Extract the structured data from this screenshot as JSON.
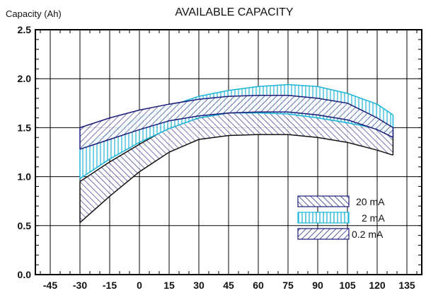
{
  "chart_data": {
    "type": "area",
    "title": "AVAILABLE CAPACITY",
    "ylabel": "Capacity (Ah)",
    "xlabel": "",
    "xlim": [
      -52.5,
      142.5
    ],
    "ylim": [
      0,
      2.5
    ],
    "x_ticks": [
      "-45",
      "-30",
      "-15",
      "0",
      "15",
      "30",
      "45",
      "60",
      "75",
      "90",
      "105",
      "120",
      "135"
    ],
    "y_ticks": [
      "0.0",
      "0.5",
      "1.0",
      "1.5",
      "2.0",
      "2.5"
    ],
    "grid": true,
    "legend_position": "bottom-right",
    "colors": {
      "dark_band": "#1a1a7a",
      "cyan_band": "#1ab4d8",
      "dark_edge": "#111111"
    },
    "series": [
      {
        "name": "20 mA",
        "hatch": "dark-backslash",
        "x": [
          -30,
          -15,
          0,
          15,
          30,
          45,
          60,
          75,
          90,
          105,
          120,
          128
        ],
        "upper": [
          0.95,
          1.15,
          1.33,
          1.5,
          1.6,
          1.65,
          1.67,
          1.67,
          1.62,
          1.57,
          1.5,
          1.45
        ],
        "lower": [
          0.53,
          0.8,
          1.05,
          1.25,
          1.38,
          1.42,
          1.43,
          1.43,
          1.4,
          1.35,
          1.27,
          1.22
        ]
      },
      {
        "name": "2 mA",
        "hatch": "cyan-vertical",
        "x": [
          -30,
          -15,
          0,
          15,
          30,
          45,
          60,
          75,
          90,
          105,
          120,
          128
        ],
        "upper": [
          1.28,
          1.45,
          1.6,
          1.72,
          1.82,
          1.88,
          1.92,
          1.94,
          1.92,
          1.85,
          1.74,
          1.63
        ],
        "lower": [
          0.98,
          1.18,
          1.35,
          1.49,
          1.6,
          1.65,
          1.65,
          1.64,
          1.6,
          1.55,
          1.49,
          1.44
        ]
      },
      {
        "name": "0.2 mA",
        "hatch": "dark-slash",
        "x": [
          -30,
          -15,
          0,
          15,
          30,
          45,
          60,
          75,
          90,
          105,
          120,
          128
        ],
        "upper": [
          1.5,
          1.6,
          1.68,
          1.74,
          1.79,
          1.82,
          1.83,
          1.83,
          1.8,
          1.75,
          1.6,
          1.5
        ],
        "lower": [
          1.28,
          1.38,
          1.48,
          1.57,
          1.62,
          1.65,
          1.66,
          1.66,
          1.63,
          1.58,
          1.48,
          1.4
        ]
      }
    ]
  }
}
